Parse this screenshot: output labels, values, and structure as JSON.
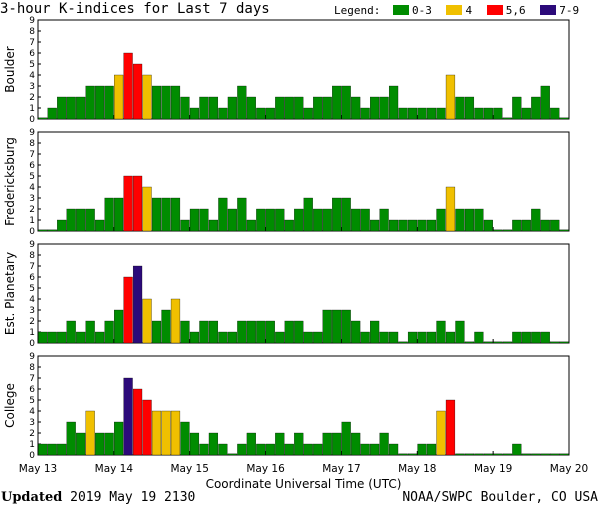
{
  "title": "3-hour K-indices for Last 7 days",
  "legend": {
    "label": "Legend:",
    "items": [
      {
        "label": "0-3",
        "color": "#008c00"
      },
      {
        "label": "4",
        "color": "#f0c000"
      },
      {
        "label": "5,6",
        "color": "#ff0000"
      },
      {
        "label": "7-9",
        "color": "#2c0a7a"
      }
    ]
  },
  "footer": {
    "updated_label": "Updated",
    "updated_value": "2019 May 19 2130",
    "credit": "NOAA/SWPC Boulder, CO USA"
  },
  "chart_data": {
    "type": "bar",
    "xlabel": "Coordinate Universal Time (UTC)",
    "x_ticks": [
      "May 13",
      "May 14",
      "May 15",
      "May 16",
      "May 17",
      "May 18",
      "May 19",
      "May 20"
    ],
    "ylim": [
      0,
      9
    ],
    "y_ticks": [
      "0",
      "1",
      "2",
      "3",
      "4",
      "5",
      "6",
      "7",
      "8",
      "9"
    ],
    "grid": false,
    "panels": [
      {
        "name": "Boulder",
        "values": [
          0,
          1,
          2,
          2,
          2,
          3,
          3,
          3,
          4,
          6,
          5,
          4,
          3,
          3,
          3,
          2,
          1,
          2,
          2,
          1,
          2,
          3,
          2,
          1,
          1,
          2,
          2,
          2,
          1,
          2,
          2,
          3,
          3,
          2,
          1,
          2,
          2,
          3,
          1,
          1,
          1,
          1,
          1,
          4,
          2,
          2,
          1,
          1,
          1,
          0,
          2,
          1,
          2,
          3,
          1,
          0
        ]
      },
      {
        "name": "Fredericksburg",
        "values": [
          0,
          0,
          1,
          2,
          2,
          2,
          1,
          3,
          3,
          5,
          5,
          4,
          3,
          3,
          3,
          1,
          2,
          2,
          1,
          3,
          2,
          3,
          1,
          2,
          2,
          2,
          1,
          2,
          3,
          2,
          2,
          3,
          3,
          2,
          2,
          1,
          2,
          1,
          1,
          1,
          1,
          1,
          2,
          4,
          2,
          2,
          2,
          1,
          0,
          0,
          1,
          1,
          2,
          1,
          1,
          0
        ]
      },
      {
        "name": "Est. Planetary",
        "values": [
          1,
          1,
          1,
          2,
          1,
          2,
          1,
          2,
          3,
          6,
          7,
          4,
          2,
          3,
          4,
          2,
          1,
          2,
          2,
          1,
          1,
          2,
          2,
          2,
          2,
          1,
          2,
          2,
          1,
          1,
          3,
          3,
          3,
          2,
          1,
          2,
          1,
          1,
          0,
          1,
          1,
          1,
          2,
          1,
          2,
          0,
          1,
          0,
          0,
          0,
          1,
          1,
          1,
          1,
          0,
          0
        ]
      },
      {
        "name": "College",
        "values": [
          1,
          1,
          1,
          3,
          2,
          4,
          2,
          2,
          3,
          7,
          6,
          5,
          4,
          4,
          4,
          3,
          2,
          1,
          2,
          1,
          0,
          1,
          2,
          1,
          1,
          2,
          1,
          2,
          1,
          1,
          2,
          2,
          3,
          2,
          1,
          1,
          2,
          1,
          0,
          0,
          1,
          1,
          4,
          5,
          0,
          0,
          0,
          0,
          0,
          0,
          1,
          0,
          0,
          0,
          0,
          0
        ]
      }
    ]
  }
}
